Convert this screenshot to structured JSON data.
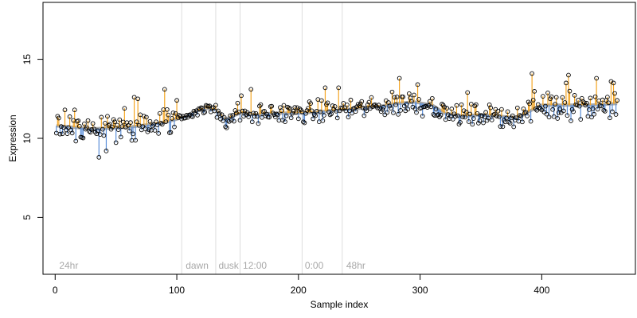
{
  "chart_data": {
    "type": "scatter",
    "title": "",
    "xlabel": "Sample index",
    "ylabel": "Expression",
    "xlim": [
      -10,
      477
    ],
    "ylim": [
      1.4,
      18.6
    ],
    "x_ticks": [
      0,
      100,
      200,
      300,
      400
    ],
    "y_ticks": [
      5,
      10,
      15
    ],
    "grid": false,
    "legend": "none",
    "phase_boundaries": [
      104,
      132,
      152,
      203,
      236
    ],
    "phase_labels": [
      {
        "x": 2,
        "label": "24hr"
      },
      {
        "x": 106,
        "label": "dawn"
      },
      {
        "x": 133,
        "label": "dusk"
      },
      {
        "x": 153,
        "label": "12:00"
      },
      {
        "x": 204,
        "label": "0:00"
      },
      {
        "x": 238,
        "label": "48hr"
      }
    ],
    "trend_anchors": [
      [
        0,
        10.8
      ],
      [
        30,
        10.6
      ],
      [
        60,
        10.7
      ],
      [
        90,
        11.0
      ],
      [
        104,
        11.3
      ],
      [
        115,
        11.7
      ],
      [
        125,
        11.9
      ],
      [
        132,
        11.8
      ],
      [
        140,
        11.2
      ],
      [
        152,
        11.6
      ],
      [
        165,
        11.5
      ],
      [
        180,
        11.6
      ],
      [
        203,
        11.6
      ],
      [
        220,
        11.7
      ],
      [
        236,
        11.8
      ],
      [
        250,
        11.9
      ],
      [
        265,
        12.0
      ],
      [
        280,
        12.2
      ],
      [
        295,
        12.3
      ],
      [
        310,
        12.1
      ],
      [
        320,
        11.6
      ],
      [
        335,
        11.4
      ],
      [
        350,
        11.5
      ],
      [
        365,
        11.4
      ],
      [
        380,
        11.3
      ],
      [
        392,
        11.8
      ],
      [
        400,
        12.1
      ],
      [
        410,
        12.1
      ],
      [
        420,
        12.1
      ],
      [
        440,
        12.1
      ],
      [
        462,
        12.2
      ]
    ],
    "highlight_points": [
      {
        "x": 2,
        "y": 11.4
      },
      {
        "x": 8,
        "y": 11.8
      },
      {
        "x": 16,
        "y": 11.8
      },
      {
        "x": 36,
        "y": 8.8
      },
      {
        "x": 42,
        "y": 9.2
      },
      {
        "x": 57,
        "y": 11.9
      },
      {
        "x": 65,
        "y": 12.6
      },
      {
        "x": 68,
        "y": 12.5
      },
      {
        "x": 90,
        "y": 13.1
      },
      {
        "x": 100,
        "y": 12.4
      },
      {
        "x": 153,
        "y": 12.7
      },
      {
        "x": 161,
        "y": 13.1
      },
      {
        "x": 222,
        "y": 13.2
      },
      {
        "x": 233,
        "y": 13.2
      },
      {
        "x": 283,
        "y": 13.8
      },
      {
        "x": 298,
        "y": 13.4
      },
      {
        "x": 339,
        "y": 12.9
      },
      {
        "x": 392,
        "y": 14.1
      },
      {
        "x": 420,
        "y": 13.5
      },
      {
        "x": 422,
        "y": 14.0
      },
      {
        "x": 445,
        "y": 13.8
      },
      {
        "x": 457,
        "y": 13.6
      },
      {
        "x": 459,
        "y": 13.5
      },
      {
        "x": 462,
        "y": 12.4
      }
    ],
    "series_style": {
      "point_stroke": "#000000",
      "point_fill": "none",
      "stem_above_color": "#f5a623",
      "stem_below_color": "#5b8fd9",
      "trend_color": "#a0a0a0",
      "boundary_color": "#dddddd"
    },
    "n_points": 462
  }
}
